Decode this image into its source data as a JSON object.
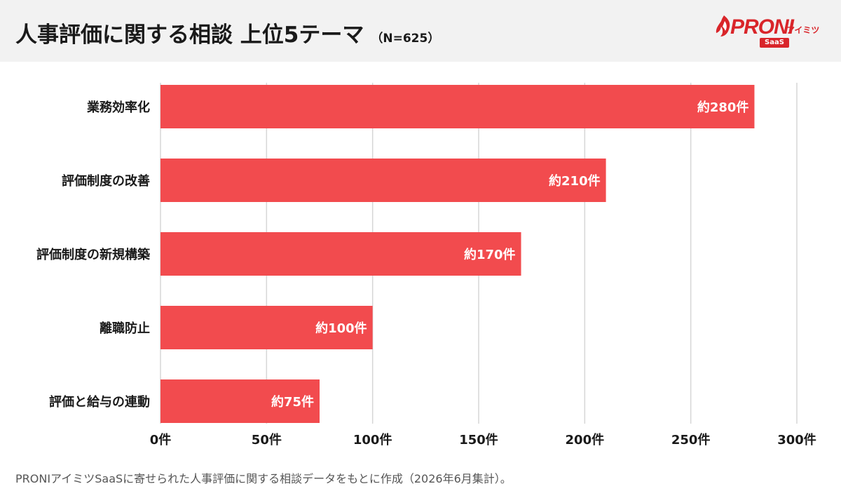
{
  "header": {
    "title": "人事評価に関する相談 上位5テーマ",
    "subtitle": "（N=625）"
  },
  "logo": {
    "brand": "PRONI",
    "sub": "アイミツ",
    "badge": "SaaS",
    "icon": "proni-flame-logo-icon"
  },
  "chart_data": {
    "type": "bar",
    "orientation": "horizontal",
    "categories": [
      "業務効率化",
      "評価制度の改善",
      "評価制度の新規構築",
      "離職防止",
      "評価と給与の連動"
    ],
    "values": [
      280,
      210,
      170,
      100,
      75
    ],
    "data_labels": [
      "約280件",
      "約210件",
      "約170件",
      "約100件",
      "約75件"
    ],
    "x_ticks": [
      0,
      50,
      100,
      150,
      200,
      250,
      300
    ],
    "x_tick_labels": [
      "0件",
      "50件",
      "100件",
      "150件",
      "200件",
      "250件",
      "300件"
    ],
    "xlim": [
      0,
      300
    ],
    "grid": true,
    "bar_color": "#f24b4e",
    "grid_color": "#d6d6d6",
    "label_color": "#ffffff"
  },
  "footnote": "PRONIアイミツSaaSに寄せられた人事評価に関する相談データをもとに作成（2026年6月集計）。"
}
